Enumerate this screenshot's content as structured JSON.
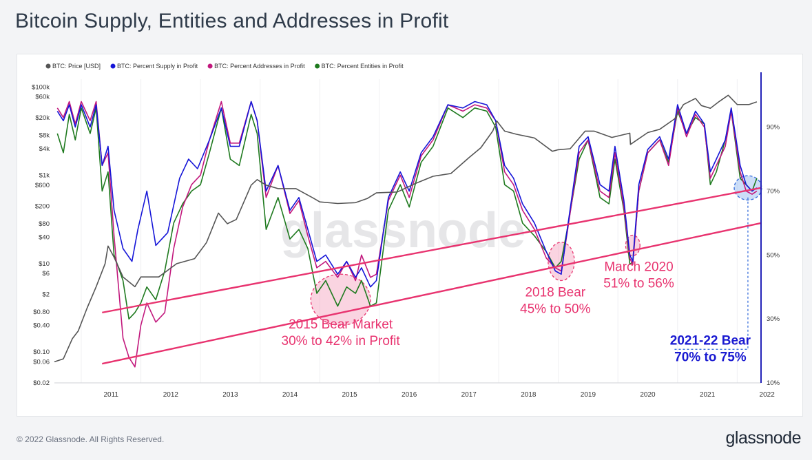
{
  "page": {
    "title": "Bitcoin Supply, Entities and Addresses in Profit",
    "footer": "© 2022 Glassnode. All Rights Reserved.",
    "logo": "glassnode"
  },
  "chart_data": {
    "type": "line",
    "title": "Bitcoin Supply, Entities and Addresses in Profit",
    "watermark": "glassnode",
    "legend": {
      "placement": "top-left",
      "entries": [
        {
          "label": "BTC: Price [USD]",
          "color": "#555555"
        },
        {
          "label": "BTC: Percent Supply in Profit",
          "color": "#1515d8"
        },
        {
          "label": "BTC: Percent Addresses in Profit",
          "color": "#c2187d"
        },
        {
          "label": "BTC: Percent Entities in Profit",
          "color": "#1f7a1f"
        }
      ]
    },
    "x_axis": {
      "range": [
        2010.55,
        2022.4
      ],
      "ticks": [
        "2011",
        "2012",
        "2013",
        "2014",
        "2015",
        "2016",
        "2017",
        "2018",
        "2019",
        "2020",
        "2021",
        "2022"
      ]
    },
    "y_left": {
      "scale": "log",
      "range": [
        0.02,
        150000
      ],
      "ticks": [
        {
          "label": "$100k",
          "value": 100000
        },
        {
          "label": "$60k",
          "value": 60000
        },
        {
          "label": "$20k",
          "value": 20000
        },
        {
          "label": "$8k",
          "value": 8000
        },
        {
          "label": "$4k",
          "value": 4000
        },
        {
          "label": "$1k",
          "value": 1000
        },
        {
          "label": "$600",
          "value": 600
        },
        {
          "label": "$200",
          "value": 200
        },
        {
          "label": "$80",
          "value": 80
        },
        {
          "label": "$40",
          "value": 40
        },
        {
          "label": "$10",
          "value": 10
        },
        {
          "label": "$6",
          "value": 6
        },
        {
          "label": "$2",
          "value": 2
        },
        {
          "label": "$0.80",
          "value": 0.8
        },
        {
          "label": "$0.40",
          "value": 0.4
        },
        {
          "label": "$0.10",
          "value": 0.1
        },
        {
          "label": "$0.06",
          "value": 0.06
        },
        {
          "label": "$0.02",
          "value": 0.02
        }
      ]
    },
    "y_right": {
      "scale": "linear",
      "range": [
        10,
        105
      ],
      "ticks": [
        {
          "label": "10%",
          "value": 10
        },
        {
          "label": "30%",
          "value": 30
        },
        {
          "label": "50%",
          "value": 50
        },
        {
          "label": "70%",
          "value": 70
        },
        {
          "label": "90%",
          "value": 90
        }
      ]
    },
    "series": [
      {
        "name": "BTC: Price [USD]",
        "axis": "left",
        "color": "#555555",
        "x": [
          2010.55,
          2010.7,
          2010.85,
          2010.95,
          2011.1,
          2011.25,
          2011.4,
          2011.45,
          2011.55,
          2011.7,
          2011.9,
          2012.0,
          2012.3,
          2012.6,
          2012.9,
          2013.1,
          2013.3,
          2013.45,
          2013.6,
          2013.85,
          2013.95,
          2014.1,
          2014.3,
          2014.6,
          2014.9,
          2015.0,
          2015.3,
          2015.6,
          2015.8,
          2015.95,
          2016.3,
          2016.6,
          2016.9,
          2017.2,
          2017.5,
          2017.7,
          2017.9,
          2017.97,
          2018.1,
          2018.3,
          2018.6,
          2018.9,
          2019.0,
          2019.2,
          2019.45,
          2019.6,
          2019.9,
          2020.2,
          2020.21,
          2020.5,
          2020.7,
          2020.95,
          2021.1,
          2021.3,
          2021.4,
          2021.55,
          2021.7,
          2021.85,
          2022.0,
          2022.2,
          2022.33
        ],
        "values": [
          0.06,
          0.07,
          0.2,
          0.3,
          1,
          3,
          10,
          25,
          14,
          5,
          3,
          5,
          5,
          10,
          13,
          30,
          140,
          80,
          100,
          600,
          800,
          600,
          500,
          500,
          300,
          250,
          230,
          240,
          300,
          400,
          420,
          650,
          950,
          1100,
          2500,
          4200,
          10000,
          17000,
          10000,
          8500,
          7000,
          3500,
          3800,
          4000,
          10000,
          10000,
          7200,
          9000,
          5000,
          9300,
          11000,
          19000,
          40000,
          55000,
          38000,
          33000,
          47000,
          65000,
          40000,
          40000,
          46000
        ]
      },
      {
        "name": "BTC: Percent Supply in Profit",
        "axis": "right",
        "color": "#1515d8",
        "x": [
          2010.6,
          2010.7,
          2010.8,
          2010.9,
          2011.0,
          2011.15,
          2011.25,
          2011.35,
          2011.45,
          2011.55,
          2011.7,
          2011.85,
          2011.95,
          2012.1,
          2012.25,
          2012.45,
          2012.65,
          2012.8,
          2012.95,
          2013.15,
          2013.35,
          2013.5,
          2013.65,
          2013.85,
          2013.95,
          2014.1,
          2014.3,
          2014.5,
          2014.65,
          2014.8,
          2014.95,
          2015.1,
          2015.3,
          2015.45,
          2015.6,
          2015.7,
          2015.85,
          2015.95,
          2016.15,
          2016.35,
          2016.5,
          2016.7,
          2016.9,
          2017.15,
          2017.4,
          2017.6,
          2017.8,
          2017.95,
          2018.1,
          2018.25,
          2018.4,
          2018.6,
          2018.8,
          2018.95,
          2019.05,
          2019.15,
          2019.35,
          2019.5,
          2019.7,
          2019.85,
          2019.95,
          2020.1,
          2020.2,
          2020.25,
          2020.35,
          2020.5,
          2020.7,
          2020.85,
          2021.0,
          2021.15,
          2021.3,
          2021.45,
          2021.55,
          2021.65,
          2021.8,
          2021.9,
          2022.05,
          2022.15,
          2022.25,
          2022.33
        ],
        "values": [
          95,
          92,
          97,
          90,
          97,
          90,
          97,
          78,
          84,
          64,
          52,
          48,
          58,
          70,
          53,
          57,
          74,
          80,
          77,
          86,
          96,
          84,
          84,
          98,
          92,
          70,
          78,
          64,
          68,
          58,
          48,
          50,
          44,
          48,
          43,
          46,
          40,
          42,
          68,
          76,
          70,
          82,
          87,
          97,
          96,
          98,
          97,
          92,
          78,
          74,
          66,
          60,
          51,
          45,
          44,
          58,
          84,
          87,
          72,
          70,
          84,
          67,
          50,
          48,
          72,
          83,
          87,
          80,
          97,
          88,
          95,
          91,
          76,
          80,
          86,
          96,
          78,
          72,
          70,
          71
        ]
      },
      {
        "name": "BTC: Percent Addresses in Profit",
        "axis": "right",
        "color": "#c2187d",
        "x": [
          2010.6,
          2010.7,
          2010.8,
          2010.9,
          2011.0,
          2011.15,
          2011.25,
          2011.35,
          2011.45,
          2011.55,
          2011.7,
          2011.8,
          2011.9,
          2012.0,
          2012.1,
          2012.25,
          2012.4,
          2012.55,
          2012.7,
          2012.85,
          2013.0,
          2013.15,
          2013.35,
          2013.5,
          2013.65,
          2013.85,
          2013.95,
          2014.1,
          2014.3,
          2014.5,
          2014.65,
          2014.8,
          2014.95,
          2015.1,
          2015.3,
          2015.45,
          2015.6,
          2015.7,
          2015.85,
          2015.95,
          2016.15,
          2016.35,
          2016.5,
          2016.7,
          2016.9,
          2017.15,
          2017.4,
          2017.6,
          2017.8,
          2017.95,
          2018.1,
          2018.25,
          2018.4,
          2018.6,
          2018.8,
          2018.95,
          2019.05,
          2019.15,
          2019.35,
          2019.5,
          2019.7,
          2019.85,
          2019.95,
          2020.1,
          2020.2,
          2020.25,
          2020.35,
          2020.5,
          2020.7,
          2020.85,
          2021.0,
          2021.15,
          2021.3,
          2021.45,
          2021.55,
          2021.65,
          2021.8,
          2021.9,
          2022.05,
          2022.15,
          2022.25,
          2022.33
        ],
        "values": [
          96,
          93,
          98,
          91,
          98,
          92,
          98,
          78,
          82,
          56,
          24,
          18,
          15,
          28,
          35,
          29,
          32,
          52,
          65,
          72,
          75,
          86,
          98,
          85,
          85,
          98,
          92,
          68,
          78,
          63,
          67,
          56,
          46,
          48,
          43,
          48,
          42,
          50,
          43,
          44,
          67,
          75,
          68,
          81,
          86,
          97,
          95,
          97,
          96,
          92,
          76,
          72,
          64,
          58,
          49,
          46,
          45,
          57,
          82,
          86,
          70,
          68,
          82,
          65,
          49,
          47,
          70,
          82,
          86,
          78,
          96,
          87,
          94,
          90,
          74,
          78,
          84,
          95,
          76,
          70,
          69,
          70
        ]
      },
      {
        "name": "BTC: Percent Entities in Profit",
        "axis": "right",
        "color": "#1f7a1f",
        "x": [
          2010.6,
          2010.7,
          2010.8,
          2010.9,
          2011.0,
          2011.15,
          2011.25,
          2011.35,
          2011.45,
          2011.55,
          2011.7,
          2011.8,
          2011.9,
          2012.0,
          2012.1,
          2012.25,
          2012.4,
          2012.55,
          2012.7,
          2012.85,
          2013.0,
          2013.15,
          2013.35,
          2013.5,
          2013.65,
          2013.85,
          2013.95,
          2014.1,
          2014.3,
          2014.5,
          2014.65,
          2014.8,
          2014.95,
          2015.1,
          2015.3,
          2015.45,
          2015.6,
          2015.7,
          2015.85,
          2015.95,
          2016.15,
          2016.35,
          2016.5,
          2016.7,
          2016.9,
          2017.15,
          2017.4,
          2017.6,
          2017.8,
          2017.95,
          2018.1,
          2018.25,
          2018.4,
          2018.6,
          2018.8,
          2018.95,
          2019.05,
          2019.15,
          2019.35,
          2019.5,
          2019.7,
          2019.85,
          2019.95,
          2020.1,
          2020.2,
          2020.25,
          2020.35,
          2020.5,
          2020.7,
          2020.85,
          2021.0,
          2021.15,
          2021.3,
          2021.45,
          2021.55,
          2021.65,
          2021.8,
          2021.9,
          2022.05,
          2022.15,
          2022.25,
          2022.33
        ],
        "values": [
          88,
          82,
          94,
          86,
          96,
          88,
          96,
          70,
          76,
          50,
          42,
          30,
          32,
          35,
          40,
          36,
          45,
          60,
          66,
          70,
          72,
          82,
          96,
          80,
          78,
          94,
          88,
          58,
          68,
          55,
          58,
          52,
          38,
          42,
          34,
          40,
          38,
          42,
          34,
          35,
          64,
          72,
          65,
          79,
          84,
          96,
          93,
          96,
          95,
          90,
          72,
          70,
          60,
          56,
          51,
          46,
          48,
          58,
          80,
          86,
          68,
          66,
          80,
          64,
          47,
          48,
          70,
          82,
          86,
          79,
          95,
          88,
          93,
          91,
          72,
          76,
          86,
          95,
          74,
          72,
          70,
          74
        ]
      }
    ],
    "trend_lines": [
      {
        "name": "upper-support-line",
        "color": "#e8336f",
        "points": [
          [
            2011.35,
            32
          ],
          [
            2022.4,
            71
          ]
        ]
      },
      {
        "name": "lower-support-line",
        "color": "#e8336f",
        "points": [
          [
            2011.35,
            16
          ],
          [
            2022.4,
            60
          ]
        ]
      }
    ],
    "highlights": [
      {
        "name": "highlight-2015",
        "cx": 2015.35,
        "cy": 36,
        "rx": 0.5,
        "ry": 8,
        "fill": "#f4a0bd",
        "stroke": "#e8336f"
      },
      {
        "name": "highlight-2018",
        "cx": 2019.05,
        "cy": 48,
        "rx": 0.22,
        "ry": 6,
        "fill": "#f4a0bd",
        "stroke": "#e8336f"
      },
      {
        "name": "highlight-2020",
        "cx": 2020.25,
        "cy": 53,
        "rx": 0.12,
        "ry": 3.2,
        "fill": "#f4a0bd",
        "stroke": "#e8336f"
      },
      {
        "name": "highlight-2022",
        "cx": 2022.18,
        "cy": 71,
        "rx": 0.23,
        "ry": 3.8,
        "fill": "#8fb6f0",
        "stroke": "#2b65d9"
      }
    ],
    "annotations": [
      {
        "name": "annotation-2015",
        "lines": [
          "2015 Bear Market",
          "30% to 42% in Profit"
        ],
        "x": 2015.35,
        "y": 27,
        "color": "#e8336f",
        "bold": false
      },
      {
        "name": "annotation-2018",
        "lines": [
          "2018 Bear",
          "45% to 50%"
        ],
        "x": 2018.95,
        "y": 37,
        "color": "#e8336f",
        "bold": false
      },
      {
        "name": "annotation-2020",
        "lines": [
          "March 2020",
          "51% to 56%"
        ],
        "x": 2020.35,
        "y": 45,
        "color": "#e8336f",
        "bold": false
      },
      {
        "name": "annotation-2022",
        "lines": [
          "2021-22 Bear",
          "70% to 75%"
        ],
        "x": 2021.55,
        "y": 22,
        "color": "#1a1ad1",
        "bold": true
      }
    ]
  }
}
